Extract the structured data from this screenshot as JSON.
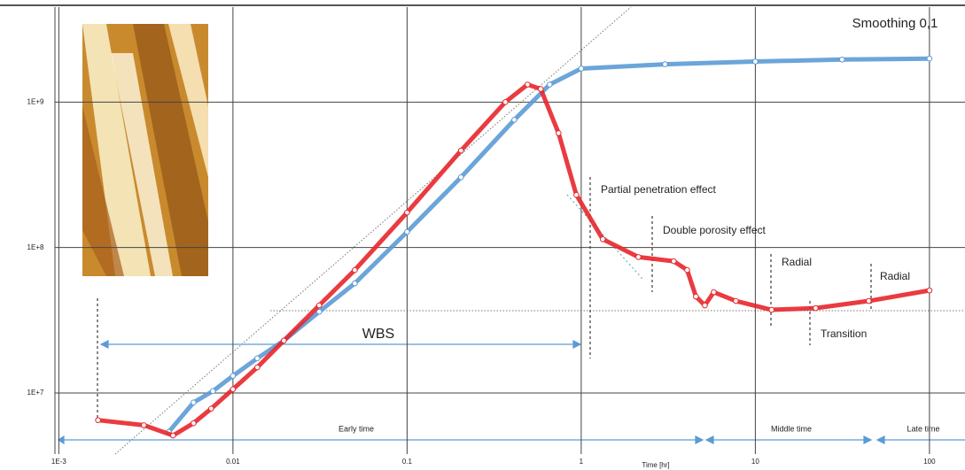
{
  "chart_data": {
    "type": "line",
    "x_label": "Time [hr]",
    "xlim": [
      0.00095,
      160
    ],
    "ylim": [
      3800000,
      4500000000
    ],
    "xticks": [
      {
        "value": 0.001,
        "label": "1E-3"
      },
      0.01,
      0.1,
      1,
      10,
      100
    ],
    "yticks": [
      {
        "value": 10000000,
        "label": "1E+7"
      },
      {
        "value": 100000000,
        "label": "1E+8"
      },
      {
        "value": 1000000000,
        "label": "1E+9"
      }
    ],
    "log_x": true,
    "log_y": true,
    "grid": true,
    "series": [
      {
        "color": "#5b9bd5",
        "x": [
          0.00428,
          0.00594,
          0.00767,
          0.01,
          0.0138,
          0.0196,
          0.0313,
          0.0501,
          0.1,
          0.204,
          0.413,
          0.659,
          1,
          3.03,
          10,
          31.5,
          100
        ],
        "values": [
          5400000,
          8600000,
          10300000,
          13100000,
          17300000,
          22900000,
          36200000,
          56700000,
          128000000,
          304000000,
          755000000,
          1320000000,
          1700000000,
          1820000000,
          1900000000,
          1960000000,
          1990000000
        ]
      },
      {
        "color": "#e8262b",
        "x": [
          0.00168,
          0.00308,
          0.00453,
          0.00594,
          0.0075,
          0.01,
          0.0138,
          0.0196,
          0.0313,
          0.0501,
          0.1,
          0.204,
          0.367,
          0.492,
          0.586,
          0.741,
          0.938,
          1.33,
          2.13,
          3.4,
          4.06,
          4.56,
          5.13,
          5.77,
          7.73,
          12.4,
          22.2,
          44.8,
          100
        ],
        "values": [
          6500000,
          6000000,
          5100000,
          6200000,
          7800000,
          10600000,
          15000000,
          22900000,
          40000000,
          70000000,
          174000000,
          464000000,
          1000000000,
          1320000000,
          1230000000,
          612000000,
          230000000,
          114000000,
          86000000,
          80500000,
          70000000,
          46000000,
          40000000,
          49300000,
          42900000,
          37300000,
          38300000,
          42900000,
          50700000
        ]
      }
    ],
    "annotations": [
      "Smoothing 0,1",
      "Partial penetration effect",
      "Double porosity effect",
      "Radial",
      "Transition",
      "Radial",
      "WBS",
      "Early time",
      "Middle time",
      "Late time"
    ]
  }
}
